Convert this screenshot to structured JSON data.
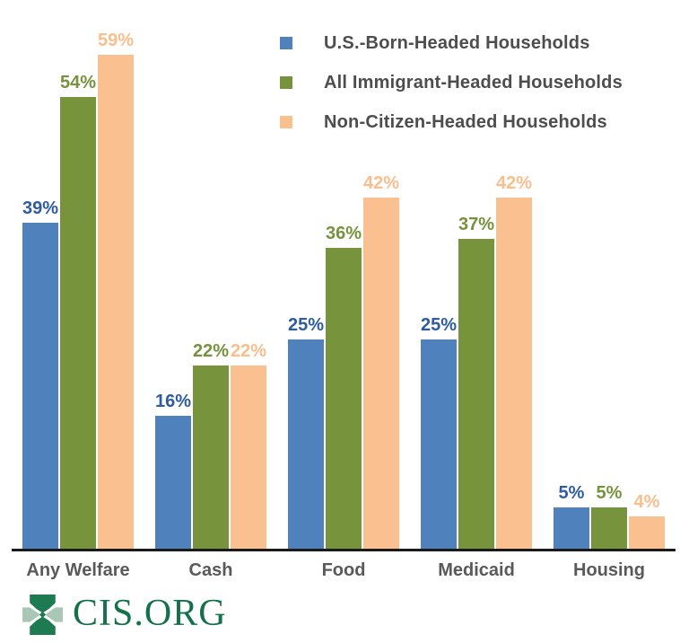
{
  "chart_data": {
    "type": "bar",
    "categories": [
      "Any Welfare",
      "Cash",
      "Food",
      "Medicaid",
      "Housing"
    ],
    "series": [
      {
        "name": "U.S.-Born-Headed Households",
        "values": [
          39,
          16,
          25,
          25,
          5
        ],
        "color": "#4F81BD",
        "label_color": "#2E5C9E"
      },
      {
        "name": "All Immigrant-Headed Households",
        "values": [
          54,
          22,
          36,
          37,
          5
        ],
        "color": "#77933C",
        "label_color": "#76923C"
      },
      {
        "name": "Non-Citizen-Headed Households",
        "values": [
          59,
          22,
          42,
          42,
          4
        ],
        "color": "#FAC090",
        "label_color": "#F9BE8C"
      }
    ],
    "value_suffix": "%",
    "ylim": [
      0,
      62
    ],
    "grid": false,
    "legend_position": "top-right",
    "axis_color": "#1A1A1A",
    "category_label_color": "#595959",
    "legend_text_color": "#4D4D4D"
  },
  "footer": {
    "logo_text": "CIS.ORG",
    "logo_text_color": "#15714B",
    "logo_icon_dark": "#1E7B51",
    "logo_icon_light": "#A9C7B4"
  }
}
